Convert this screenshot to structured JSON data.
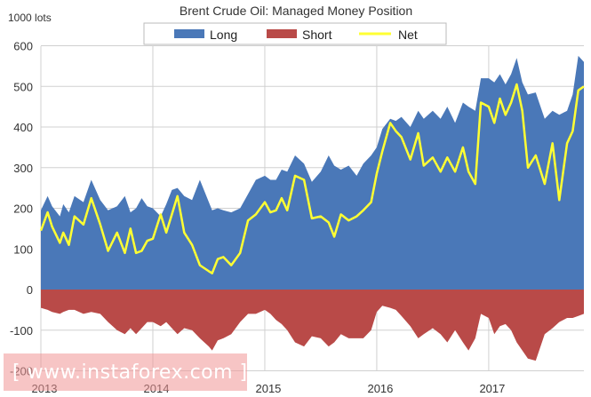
{
  "chart_data": {
    "type": "area",
    "title": "Brent Crude Oil: Managed Money Position",
    "ylabel": "1000 lots",
    "ylim": [
      -200,
      600
    ],
    "yticks": [
      -200,
      -100,
      0,
      100,
      200,
      300,
      400,
      500,
      600
    ],
    "xlim": [
      2013.0,
      2017.85
    ],
    "xticks": [
      {
        "label": "2013",
        "value": 2013.0
      },
      {
        "label": "2014",
        "value": 2014.0
      },
      {
        "label": "2015",
        "value": 2015.0
      },
      {
        "label": "2016",
        "value": 2016.0
      },
      {
        "label": "2017",
        "value": 2017.0
      }
    ],
    "legend_position": "top-center",
    "x": [
      2013.0,
      2013.06,
      2013.1,
      2013.17,
      2013.2,
      2013.25,
      2013.3,
      2013.38,
      2013.45,
      2013.53,
      2013.6,
      2013.68,
      2013.75,
      2013.8,
      2013.85,
      2013.9,
      2013.95,
      2014.0,
      2014.07,
      2014.12,
      2014.17,
      2014.22,
      2014.28,
      2014.35,
      2014.42,
      2014.5,
      2014.53,
      2014.58,
      2014.63,
      2014.7,
      2014.78,
      2014.85,
      2014.92,
      2015.0,
      2015.05,
      2015.1,
      2015.15,
      2015.2,
      2015.27,
      2015.35,
      2015.42,
      2015.5,
      2015.57,
      2015.62,
      2015.68,
      2015.75,
      2015.82,
      2015.88,
      2015.95,
      2016.0,
      2016.05,
      2016.12,
      2016.17,
      2016.22,
      2016.3,
      2016.37,
      2016.42,
      2016.5,
      2016.57,
      2016.63,
      2016.7,
      2016.77,
      2016.82,
      2016.88,
      2016.93,
      2017.0,
      2017.05,
      2017.1,
      2017.15,
      2017.2,
      2017.25,
      2017.3,
      2017.35,
      2017.42,
      2017.5,
      2017.57,
      2017.63,
      2017.7,
      2017.75,
      2017.8,
      2017.85
    ],
    "series": [
      {
        "name": "Long",
        "color": "#4a78b8",
        "values": [
          195,
          230,
          205,
          180,
          210,
          190,
          230,
          215,
          270,
          220,
          195,
          205,
          230,
          190,
          200,
          225,
          205,
          200,
          180,
          210,
          245,
          250,
          230,
          220,
          270,
          215,
          195,
          200,
          195,
          190,
          200,
          235,
          270,
          280,
          270,
          270,
          295,
          290,
          330,
          310,
          265,
          290,
          330,
          305,
          295,
          305,
          280,
          310,
          330,
          350,
          395,
          420,
          415,
          425,
          400,
          440,
          420,
          440,
          420,
          450,
          410,
          460,
          450,
          440,
          520,
          520,
          510,
          530,
          505,
          530,
          570,
          510,
          480,
          485,
          420,
          440,
          430,
          440,
          480,
          575,
          560
        ]
      },
      {
        "name": "Short",
        "color": "#b94a48",
        "values": [
          -45,
          -50,
          -55,
          -60,
          -55,
          -50,
          -50,
          -60,
          -55,
          -60,
          -80,
          -100,
          -110,
          -95,
          -110,
          -95,
          -80,
          -80,
          -90,
          -80,
          -95,
          -110,
          -95,
          -100,
          -120,
          -140,
          -150,
          -125,
          -120,
          -110,
          -80,
          -60,
          -60,
          -50,
          -60,
          -75,
          -85,
          -100,
          -130,
          -140,
          -115,
          -120,
          -140,
          -130,
          -110,
          -120,
          -120,
          -120,
          -100,
          -55,
          -40,
          -45,
          -50,
          -65,
          -90,
          -120,
          -110,
          -95,
          -110,
          -130,
          -100,
          -130,
          -150,
          -120,
          -60,
          -70,
          -110,
          -90,
          -85,
          -100,
          -130,
          -150,
          -170,
          -175,
          -110,
          -95,
          -80,
          -70,
          -70,
          -65,
          -60
        ]
      },
      {
        "name": "Net",
        "color": "#ffff33",
        "values": [
          145,
          190,
          155,
          115,
          140,
          110,
          180,
          160,
          225,
          160,
          95,
          140,
          90,
          150,
          90,
          95,
          120,
          125,
          185,
          140,
          185,
          230,
          140,
          110,
          60,
          45,
          40,
          75,
          80,
          60,
          90,
          170,
          185,
          215,
          190,
          195,
          225,
          195,
          280,
          270,
          175,
          180,
          165,
          130,
          185,
          170,
          180,
          195,
          215,
          285,
          340,
          410,
          390,
          375,
          320,
          385,
          305,
          325,
          290,
          325,
          290,
          350,
          290,
          260,
          460,
          450,
          410,
          470,
          430,
          460,
          505,
          440,
          300,
          330,
          260,
          360,
          220,
          360,
          390,
          490,
          500
        ]
      }
    ]
  }
}
